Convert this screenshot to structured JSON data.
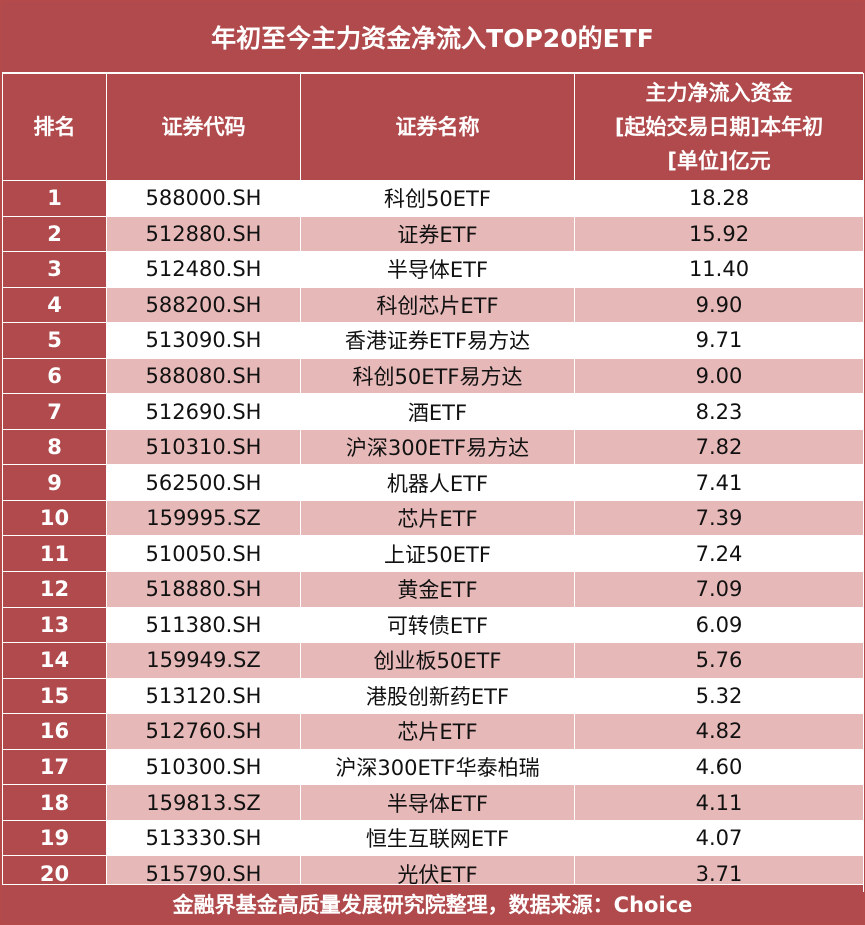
{
  "title": "年初至今主力资金净流入TOP20的ETF",
  "headers": {
    "rank": "排名",
    "code": "证券代码",
    "name": "证券名称",
    "flow_line1": "主力净流入资金",
    "flow_line2": "[起始交易日期]本年初",
    "flow_line3": "[单位]亿元"
  },
  "rows": [
    {
      "rank": "1",
      "code": "588000.SH",
      "name": "科创50ETF",
      "flow": "18.28"
    },
    {
      "rank": "2",
      "code": "512880.SH",
      "name": "证券ETF",
      "flow": "15.92"
    },
    {
      "rank": "3",
      "code": "512480.SH",
      "name": "半导体ETF",
      "flow": "11.40"
    },
    {
      "rank": "4",
      "code": "588200.SH",
      "name": "科创芯片ETF",
      "flow": "9.90"
    },
    {
      "rank": "5",
      "code": "513090.SH",
      "name": "香港证券ETF易方达",
      "flow": "9.71"
    },
    {
      "rank": "6",
      "code": "588080.SH",
      "name": "科创50ETF易方达",
      "flow": "9.00"
    },
    {
      "rank": "7",
      "code": "512690.SH",
      "name": "酒ETF",
      "flow": "8.23"
    },
    {
      "rank": "8",
      "code": "510310.SH",
      "name": "沪深300ETF易方达",
      "flow": "7.82"
    },
    {
      "rank": "9",
      "code": "562500.SH",
      "name": "机器人ETF",
      "flow": "7.41"
    },
    {
      "rank": "10",
      "code": "159995.SZ",
      "name": "芯片ETF",
      "flow": "7.39"
    },
    {
      "rank": "11",
      "code": "510050.SH",
      "name": "上证50ETF",
      "flow": "7.24"
    },
    {
      "rank": "12",
      "code": "518880.SH",
      "name": "黄金ETF",
      "flow": "7.09"
    },
    {
      "rank": "13",
      "code": "511380.SH",
      "name": "可转债ETF",
      "flow": "6.09"
    },
    {
      "rank": "14",
      "code": "159949.SZ",
      "name": "创业板50ETF",
      "flow": "5.76"
    },
    {
      "rank": "15",
      "code": "513120.SH",
      "name": "港股创新药ETF",
      "flow": "5.32"
    },
    {
      "rank": "16",
      "code": "512760.SH",
      "name": "芯片ETF",
      "flow": "4.82"
    },
    {
      "rank": "17",
      "code": "510300.SH",
      "name": "沪深300ETF华泰柏瑞",
      "flow": "4.60"
    },
    {
      "rank": "18",
      "code": "159813.SZ",
      "name": "半导体ETF",
      "flow": "4.11"
    },
    {
      "rank": "19",
      "code": "513330.SH",
      "name": "恒生互联网ETF",
      "flow": "4.07"
    },
    {
      "rank": "20",
      "code": "515790.SH",
      "name": "光伏ETF",
      "flow": "3.71"
    }
  ],
  "footer": "金融界基金高质量发展研究院整理，数据来源：Choice"
}
